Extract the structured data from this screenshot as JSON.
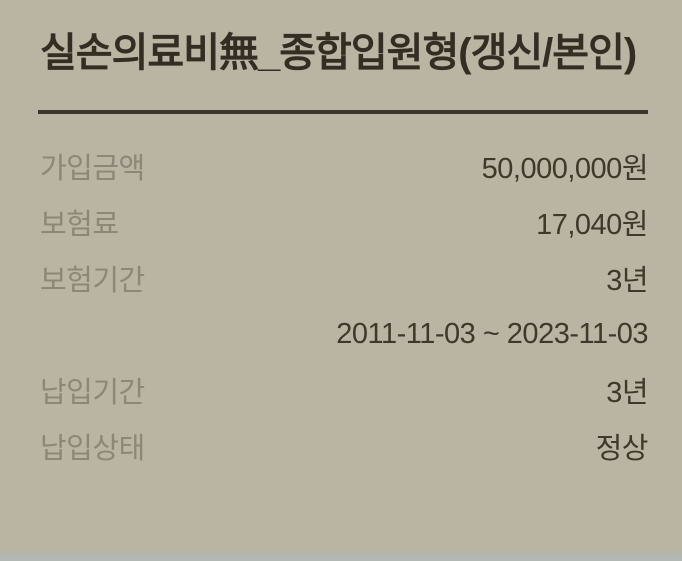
{
  "card": {
    "title": "실손의료비無_종합입원형(갱신/본인)"
  },
  "details": {
    "rows": [
      {
        "label": "가입금액",
        "value": "50,000,000원"
      },
      {
        "label": "보험료",
        "value": "17,040원"
      },
      {
        "label": "보험기간",
        "value": "3년"
      },
      {
        "label": "",
        "value": "2011-11-03 ~ 2023-11-03"
      },
      {
        "label": "납입기간",
        "value": "3년"
      },
      {
        "label": "납입상태",
        "value": "정상"
      }
    ]
  },
  "colors": {
    "background": "#bab4a3",
    "title_text": "#332d23",
    "label_text": "#8d8777",
    "value_text": "#3f392c",
    "divider": "#3a342a",
    "bottom_strip": "#b2b8b4"
  }
}
